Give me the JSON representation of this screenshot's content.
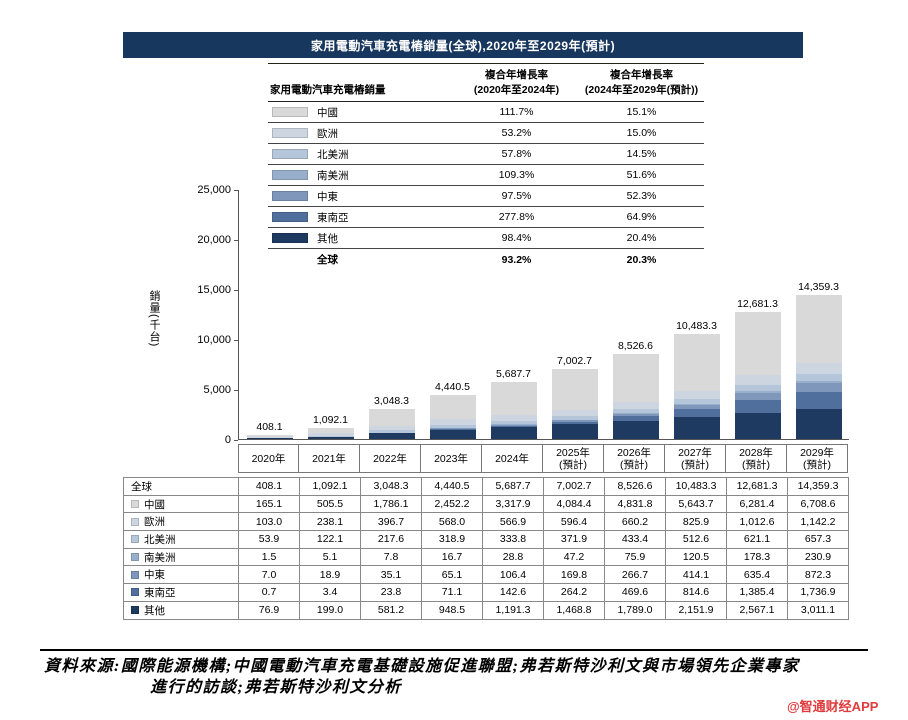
{
  "title": "家用電動汽車充電樁銷量(全球),2020年至2029年(預計)",
  "legend_table": {
    "col1_header": "家用電動汽車充電樁銷量",
    "col2_header_line1": "複合年增長率",
    "col2_header_line2": "(2020年至2024年)",
    "col3_header_line1": "複合年增長率",
    "col3_header_line2": "(2024年至2029年(預計))",
    "rows": [
      {
        "name": "中國",
        "color": "#d9d9d9",
        "cagr_2020_2024": "111.7%",
        "cagr_2024_2029": "15.1%"
      },
      {
        "name": "歐洲",
        "color": "#cdd5e1",
        "cagr_2020_2024": "53.2%",
        "cagr_2024_2029": "15.0%"
      },
      {
        "name": "北美洲",
        "color": "#b5c6da",
        "cagr_2020_2024": "57.8%",
        "cagr_2024_2029": "14.5%"
      },
      {
        "name": "南美洲",
        "color": "#98afcb",
        "cagr_2020_2024": "109.3%",
        "cagr_2024_2029": "51.6%"
      },
      {
        "name": "中東",
        "color": "#7e97bb",
        "cagr_2020_2024": "97.5%",
        "cagr_2024_2029": "52.3%"
      },
      {
        "name": "東南亞",
        "color": "#506f9d",
        "cagr_2020_2024": "277.8%",
        "cagr_2024_2029": "64.9%"
      },
      {
        "name": "其他",
        "color": "#1f3a60",
        "cagr_2020_2024": "98.4%",
        "cagr_2024_2029": "20.4%"
      },
      {
        "name": "全球",
        "color": "",
        "is_total": true,
        "cagr_2020_2024": "93.2%",
        "cagr_2024_2029": "20.3%"
      }
    ]
  },
  "chart_data": {
    "type": "bar",
    "stacked": true,
    "title": "家用電動汽車充電樁銷量(全球),2020年至2029年(預計)",
    "ylabel": "銷量(千台)",
    "ylim": [
      0,
      25000
    ],
    "ytick_labels": [
      "25,000",
      "20,000",
      "15,000",
      "10,000",
      "5,000",
      "0"
    ],
    "categories": [
      {
        "label": "2020年",
        "sub": ""
      },
      {
        "label": "2021年",
        "sub": ""
      },
      {
        "label": "2022年",
        "sub": ""
      },
      {
        "label": "2023年",
        "sub": ""
      },
      {
        "label": "2024年",
        "sub": ""
      },
      {
        "label": "2025年",
        "sub": "(預計)"
      },
      {
        "label": "2026年",
        "sub": "(預計)"
      },
      {
        "label": "2027年",
        "sub": "(預計)"
      },
      {
        "label": "2028年",
        "sub": "(預計)"
      },
      {
        "label": "2029年",
        "sub": "(預計)"
      }
    ],
    "total_labels": [
      "408.1",
      "1,092.1",
      "3,048.3",
      "4,440.5",
      "5,687.7",
      "7,002.7",
      "8,526.6",
      "10,483.3",
      "12,681.3",
      "14,359.3"
    ],
    "stack_order": "bottom-to-top",
    "series": [
      {
        "key": "others",
        "name": "其他",
        "color": "#1f3a60",
        "values": [
          76.9,
          199.0,
          581.2,
          948.5,
          1191.3,
          1468.8,
          1789.0,
          2151.9,
          2567.1,
          3011.1
        ]
      },
      {
        "key": "southeast-asia",
        "name": "東南亞",
        "color": "#506f9d",
        "values": [
          0.7,
          3.4,
          23.8,
          71.1,
          142.6,
          264.2,
          469.6,
          814.6,
          1385.4,
          1736.9
        ]
      },
      {
        "key": "middle-east",
        "name": "中東",
        "color": "#7e97bb",
        "values": [
          7.0,
          18.9,
          35.1,
          65.1,
          106.4,
          169.8,
          266.7,
          414.1,
          635.4,
          872.3
        ]
      },
      {
        "key": "south-america",
        "name": "南美洲",
        "color": "#98afcb",
        "values": [
          1.5,
          5.1,
          7.8,
          16.7,
          28.8,
          47.2,
          75.9,
          120.5,
          178.3,
          230.9
        ]
      },
      {
        "key": "north-america",
        "name": "北美洲",
        "color": "#b5c6da",
        "values": [
          53.9,
          122.1,
          217.6,
          318.9,
          333.8,
          371.9,
          433.4,
          512.6,
          621.1,
          657.3
        ]
      },
      {
        "key": "europe",
        "name": "歐洲",
        "color": "#cdd5e1",
        "values": [
          103.0,
          238.1,
          396.7,
          568.0,
          566.9,
          596.4,
          660.2,
          825.9,
          1012.6,
          1142.2
        ]
      },
      {
        "key": "china",
        "name": "中國",
        "color": "#d9d9d9",
        "values": [
          165.1,
          505.5,
          1786.1,
          2452.2,
          3317.9,
          4084.4,
          4831.8,
          5643.7,
          6281.4,
          6708.6
        ]
      }
    ]
  },
  "table": {
    "rows": [
      {
        "label": "全球",
        "color": "",
        "values": [
          "408.1",
          "1,092.1",
          "3,048.3",
          "4,440.5",
          "5,687.7",
          "7,002.7",
          "8,526.6",
          "10,483.3",
          "12,681.3",
          "14,359.3"
        ]
      },
      {
        "label": "中國",
        "color": "#d9d9d9",
        "values": [
          "165.1",
          "505.5",
          "1,786.1",
          "2,452.2",
          "3,317.9",
          "4,084.4",
          "4,831.8",
          "5,643.7",
          "6,281.4",
          "6,708.6"
        ]
      },
      {
        "label": "歐洲",
        "color": "#cdd5e1",
        "values": [
          "103.0",
          "238.1",
          "396.7",
          "568.0",
          "566.9",
          "596.4",
          "660.2",
          "825.9",
          "1,012.6",
          "1,142.2"
        ]
      },
      {
        "label": "北美洲",
        "color": "#b5c6da",
        "values": [
          "53.9",
          "122.1",
          "217.6",
          "318.9",
          "333.8",
          "371.9",
          "433.4",
          "512.6",
          "621.1",
          "657.3"
        ]
      },
      {
        "label": "南美洲",
        "color": "#98afcb",
        "values": [
          "1.5",
          "5.1",
          "7.8",
          "16.7",
          "28.8",
          "47.2",
          "75.9",
          "120.5",
          "178.3",
          "230.9"
        ]
      },
      {
        "label": "中東",
        "color": "#7e97bb",
        "values": [
          "7.0",
          "18.9",
          "35.1",
          "65.1",
          "106.4",
          "169.8",
          "266.7",
          "414.1",
          "635.4",
          "872.3"
        ]
      },
      {
        "label": "東南亞",
        "color": "#506f9d",
        "values": [
          "0.7",
          "3.4",
          "23.8",
          "71.1",
          "142.6",
          "264.2",
          "469.6",
          "814.6",
          "1,385.4",
          "1,736.9"
        ]
      },
      {
        "label": "其他",
        "color": "#1f3a60",
        "values": [
          "76.9",
          "199.0",
          "581.2",
          "948.5",
          "1,191.3",
          "1,468.8",
          "1,789.0",
          "2,151.9",
          "2,567.1",
          "3,011.1"
        ]
      }
    ]
  },
  "footer": {
    "line1": "資料來源:國際能源機構;中國電動汽車充電基礎設施促進聯盟;弗若斯特沙利文與市場領先企業專家",
    "line2": "進行的訪談;弗若斯特沙利文分析"
  },
  "watermark": "@智通财经APP"
}
